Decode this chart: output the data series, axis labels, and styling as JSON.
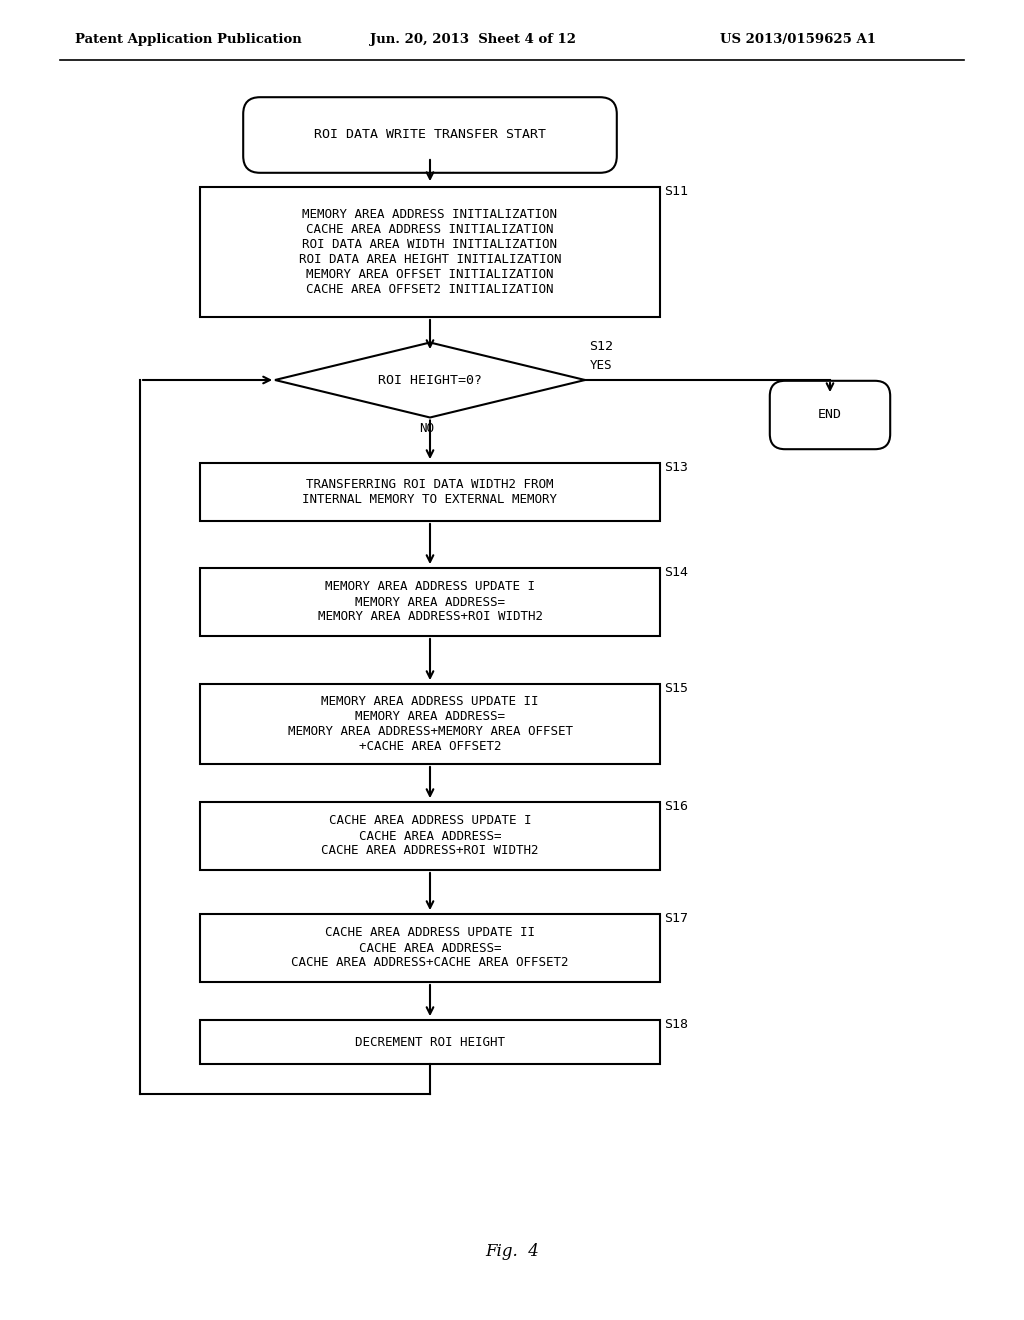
{
  "title_header": "Patent Application Publication",
  "title_date": "Jun. 20, 2013  Sheet 4 of 12",
  "title_patent": "US 2013/0159625 A1",
  "fig_label": "Fig.  4",
  "background_color": "#ffffff",
  "line_color": "#000000",
  "text_color": "#000000"
}
